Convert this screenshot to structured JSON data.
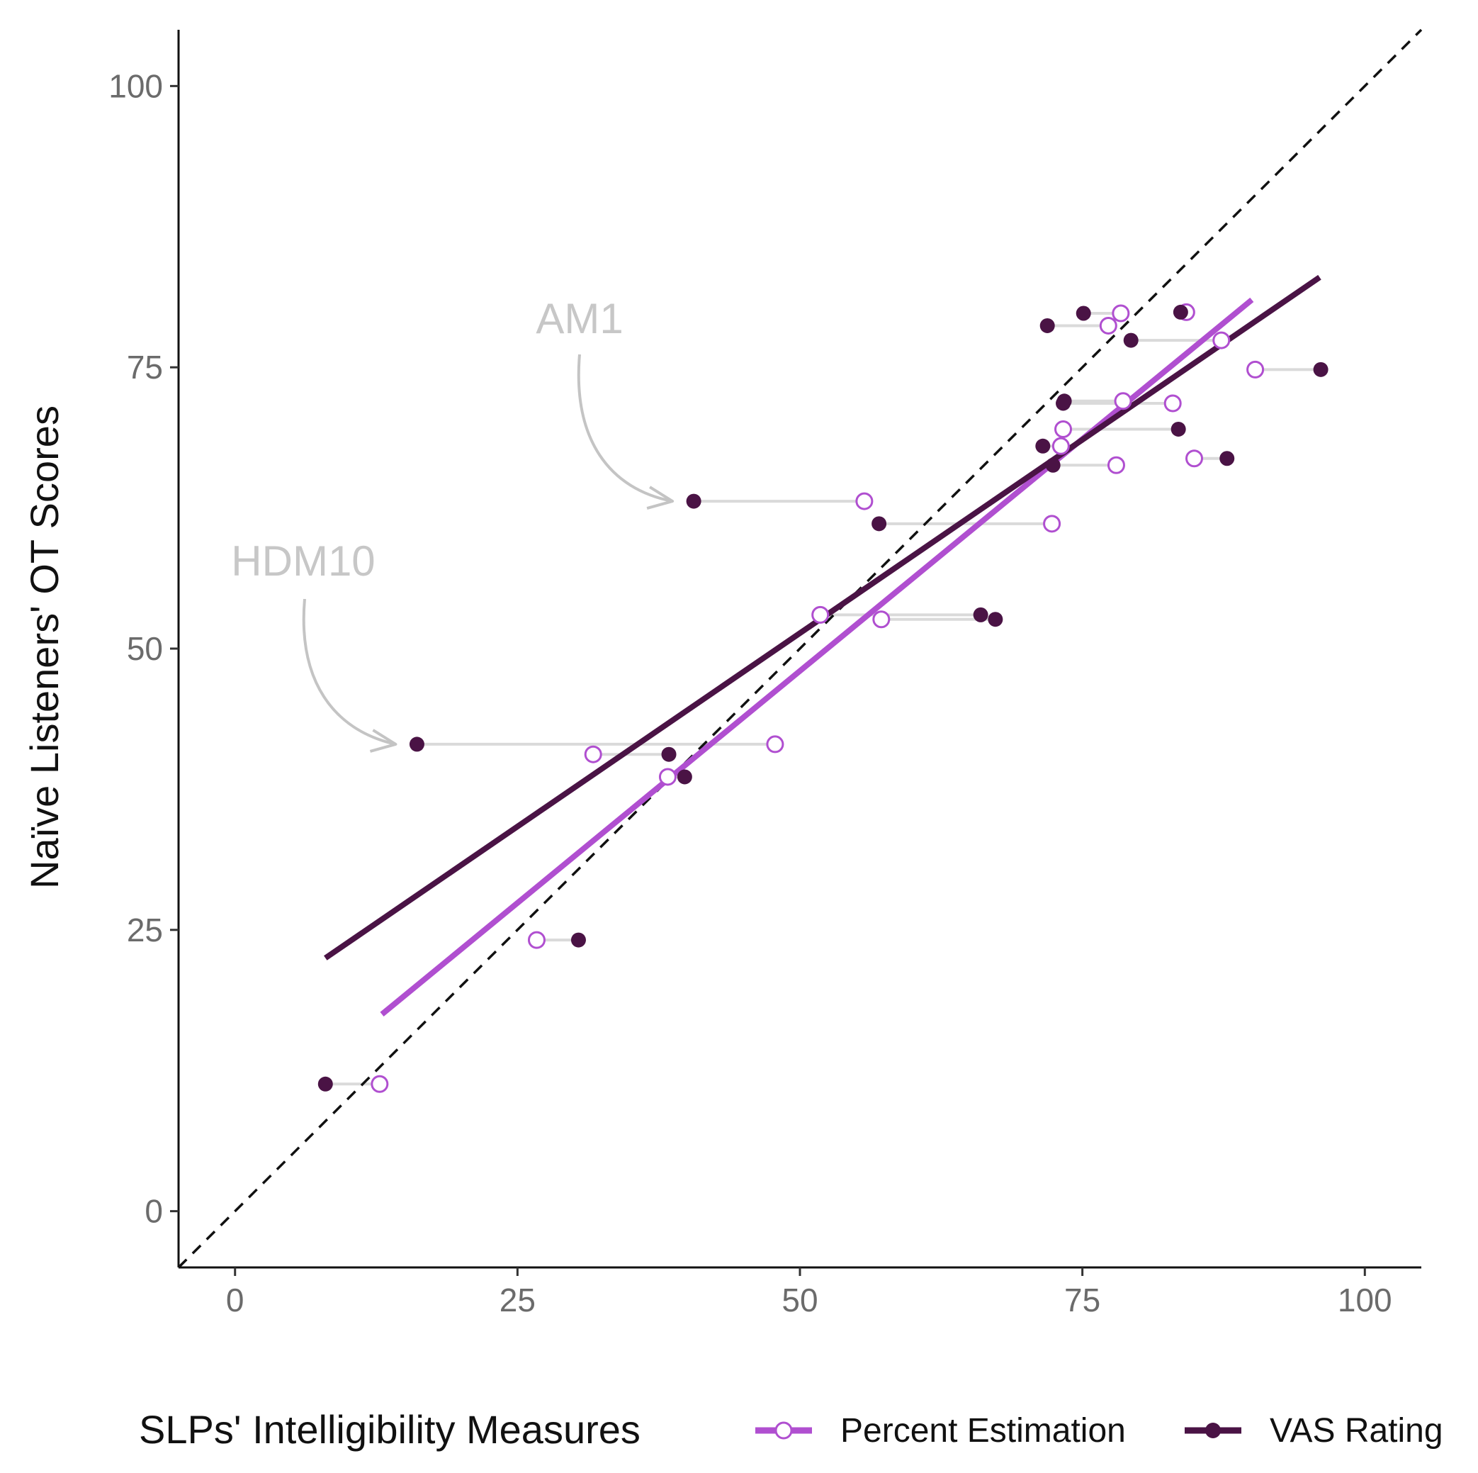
{
  "chart_data": {
    "type": "scatter",
    "title": "",
    "xlabel": "SLPs' Intelligibility Measures",
    "ylabel": "Naïve Listeners' OT Scores",
    "xlim": [
      -5,
      105
    ],
    "ylim": [
      -5,
      105
    ],
    "x_ticks": [
      "0",
      "25",
      "50",
      "75",
      "100"
    ],
    "y_ticks": [
      "0",
      "25",
      "50",
      "75",
      "100"
    ],
    "tick_values": [
      0,
      25,
      50,
      75,
      100
    ],
    "grid": false,
    "reference_line": {
      "type": "identity",
      "style": "dashed",
      "color": "#111111"
    },
    "legend": {
      "title": "SLPs' Intelligibility Measures",
      "placement": "bottom",
      "entries": [
        "Percent Estimation",
        "VAS Rating"
      ]
    },
    "series": [
      {
        "name": "Percent Estimation",
        "color": "#b04fd0",
        "marker": "open-circle",
        "trend_line": {
          "from": [
            13,
            17.5
          ],
          "to": [
            90,
            81
          ]
        }
      },
      {
        "name": "VAS Rating",
        "color": "#4a1345",
        "marker": "filled-circle",
        "trend_line": {
          "from": [
            8,
            22.5
          ],
          "to": [
            96,
            83
          ]
        }
      }
    ],
    "speakers": [
      {
        "ot": 11.3,
        "percent": 12.8,
        "vas": 8.0
      },
      {
        "ot": 24.1,
        "percent": 26.7,
        "vas": 30.4
      },
      {
        "ot": 38.6,
        "percent": 38.3,
        "vas": 39.8
      },
      {
        "ot": 40.6,
        "percent": 31.7,
        "vas": 38.4
      },
      {
        "ot": 41.5,
        "percent": 47.8,
        "vas": 16.1
      },
      {
        "ot": 52.6,
        "percent": 57.2,
        "vas": 67.3
      },
      {
        "ot": 53.0,
        "percent": 51.8,
        "vas": 66.0
      },
      {
        "ot": 61.1,
        "percent": 72.3,
        "vas": 57.0
      },
      {
        "ot": 63.1,
        "percent": 55.7,
        "vas": 40.6
      },
      {
        "ot": 66.3,
        "percent": 78.0,
        "vas": 72.4
      },
      {
        "ot": 66.9,
        "percent": 84.9,
        "vas": 87.8
      },
      {
        "ot": 68.0,
        "percent": 73.1,
        "vas": 71.5
      },
      {
        "ot": 69.5,
        "percent": 73.3,
        "vas": 83.5
      },
      {
        "ot": 71.8,
        "percent": 83.0,
        "vas": 73.3
      },
      {
        "ot": 72.0,
        "percent": 78.6,
        "vas": 73.4
      },
      {
        "ot": 74.8,
        "percent": 90.3,
        "vas": 96.1
      },
      {
        "ot": 77.4,
        "percent": 87.3,
        "vas": 79.3
      },
      {
        "ot": 78.7,
        "percent": 77.3,
        "vas": 71.9
      },
      {
        "ot": 79.8,
        "percent": 78.4,
        "vas": 75.1
      },
      {
        "ot": 79.9,
        "percent": 84.2,
        "vas": 83.7
      }
    ],
    "annotations": [
      {
        "label": "HDM10",
        "x": 16.1,
        "y": 41.5
      },
      {
        "label": "AM1",
        "x": 40.6,
        "y": 63.1
      }
    ]
  }
}
